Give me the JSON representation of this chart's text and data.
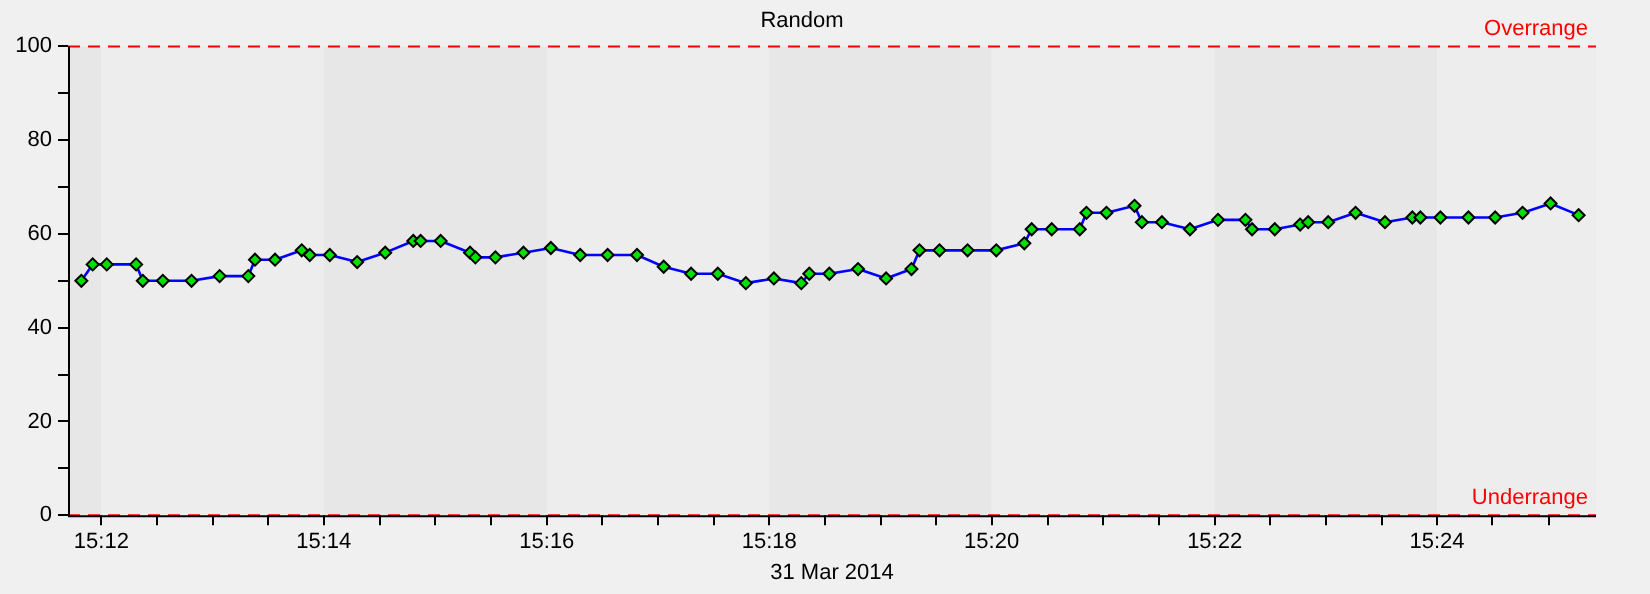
{
  "chart_data": {
    "type": "line",
    "title": "Random",
    "xlabel": "31 Mar 2014",
    "x": [
      15.197,
      15.1987,
      15.2008,
      15.2052,
      15.2062,
      15.2092,
      15.2135,
      15.2177,
      15.222,
      15.223,
      15.226,
      15.23,
      15.2312,
      15.2342,
      15.2383,
      15.2425,
      15.2467,
      15.2478,
      15.2508,
      15.2552,
      15.256,
      15.259,
      15.2632,
      15.2673,
      15.2717,
      15.2758,
      15.2802,
      15.2842,
      15.2883,
      15.2923,
      15.2965,
      15.3007,
      15.3048,
      15.306,
      15.309,
      15.3133,
      15.3175,
      15.3213,
      15.3225,
      15.3255,
      15.3297,
      15.334,
      15.3382,
      15.3393,
      15.3423,
      15.3465,
      15.3475,
      15.3505,
      15.3547,
      15.3558,
      15.3588,
      15.363,
      15.3672,
      15.3713,
      15.3723,
      15.3757,
      15.3795,
      15.3807,
      15.3837,
      15.3878,
      15.3922,
      15.3963,
      15.3975,
      15.4005,
      15.4047,
      15.4087,
      15.4128,
      15.417,
      15.4212
    ],
    "series": [
      {
        "color": "#0000ff",
        "values": [
          50,
          53.5,
          53.5,
          53.5,
          50,
          50,
          50,
          51,
          51,
          54.5,
          54.5,
          56.5,
          55.5,
          55.5,
          54,
          56,
          58.5,
          58.5,
          58.5,
          56,
          55,
          55,
          56,
          57,
          55.5,
          55.5,
          55.5,
          53,
          51.5,
          51.5,
          49.5,
          50.5,
          49.5,
          51.5,
          51.5,
          52.5,
          50.5,
          52.5,
          56.5,
          56.5,
          56.5,
          56.5,
          58,
          61,
          61,
          61,
          64.5,
          64.5,
          66,
          62.5,
          62.5,
          61,
          63,
          63,
          61,
          61,
          62,
          62.5,
          62.5,
          64.5,
          62.5,
          63.5,
          63.5,
          63.5,
          63.5,
          63.5,
          64.5,
          66.5,
          64
        ]
      }
    ],
    "xlim": [
      15.195,
      15.4238
    ],
    "xticks": [
      {
        "value": 15.2,
        "label": "15:12"
      },
      {
        "value": 15.2083,
        "label": null
      },
      {
        "value": 15.2167,
        "label": null
      },
      {
        "value": 15.225,
        "label": null
      },
      {
        "value": 15.2333,
        "label": "15:14"
      },
      {
        "value": 15.2417,
        "label": null
      },
      {
        "value": 15.25,
        "label": null
      },
      {
        "value": 15.2583,
        "label": null
      },
      {
        "value": 15.2667,
        "label": "15:16"
      },
      {
        "value": 15.275,
        "label": null
      },
      {
        "value": 15.2833,
        "label": null
      },
      {
        "value": 15.2917,
        "label": null
      },
      {
        "value": 15.3,
        "label": "15:18"
      },
      {
        "value": 15.3083,
        "label": null
      },
      {
        "value": 15.3167,
        "label": null
      },
      {
        "value": 15.325,
        "label": null
      },
      {
        "value": 15.3333,
        "label": "15:20"
      },
      {
        "value": 15.3417,
        "label": null
      },
      {
        "value": 15.35,
        "label": null
      },
      {
        "value": 15.3583,
        "label": null
      },
      {
        "value": 15.3667,
        "label": "15:22"
      },
      {
        "value": 15.375,
        "label": null
      },
      {
        "value": 15.3833,
        "label": null
      },
      {
        "value": 15.3917,
        "label": null
      },
      {
        "value": 15.4,
        "label": "15:24"
      },
      {
        "value": 15.4083,
        "label": null
      },
      {
        "value": 15.4167,
        "label": null
      }
    ],
    "ylim": [
      0,
      100
    ],
    "yticks": [
      0,
      {
        "value": 10,
        "label": null
      },
      20,
      {
        "value": 30,
        "label": null
      },
      40,
      {
        "value": 50,
        "label": null
      },
      60,
      {
        "value": 70,
        "label": null
      },
      80,
      {
        "value": 90,
        "label": null
      },
      100
    ],
    "ref_lines": [
      {
        "axis": "y",
        "value": 100,
        "label": "Overrange",
        "color": "#ff0000",
        "line_style": "dashed"
      },
      {
        "axis": "y",
        "value": 0,
        "label": "Underrange",
        "color": "#ff0000",
        "line_style": "dashed"
      }
    ],
    "marker": "diamond",
    "line_style": "solid",
    "grid": false,
    "legend": false
  }
}
